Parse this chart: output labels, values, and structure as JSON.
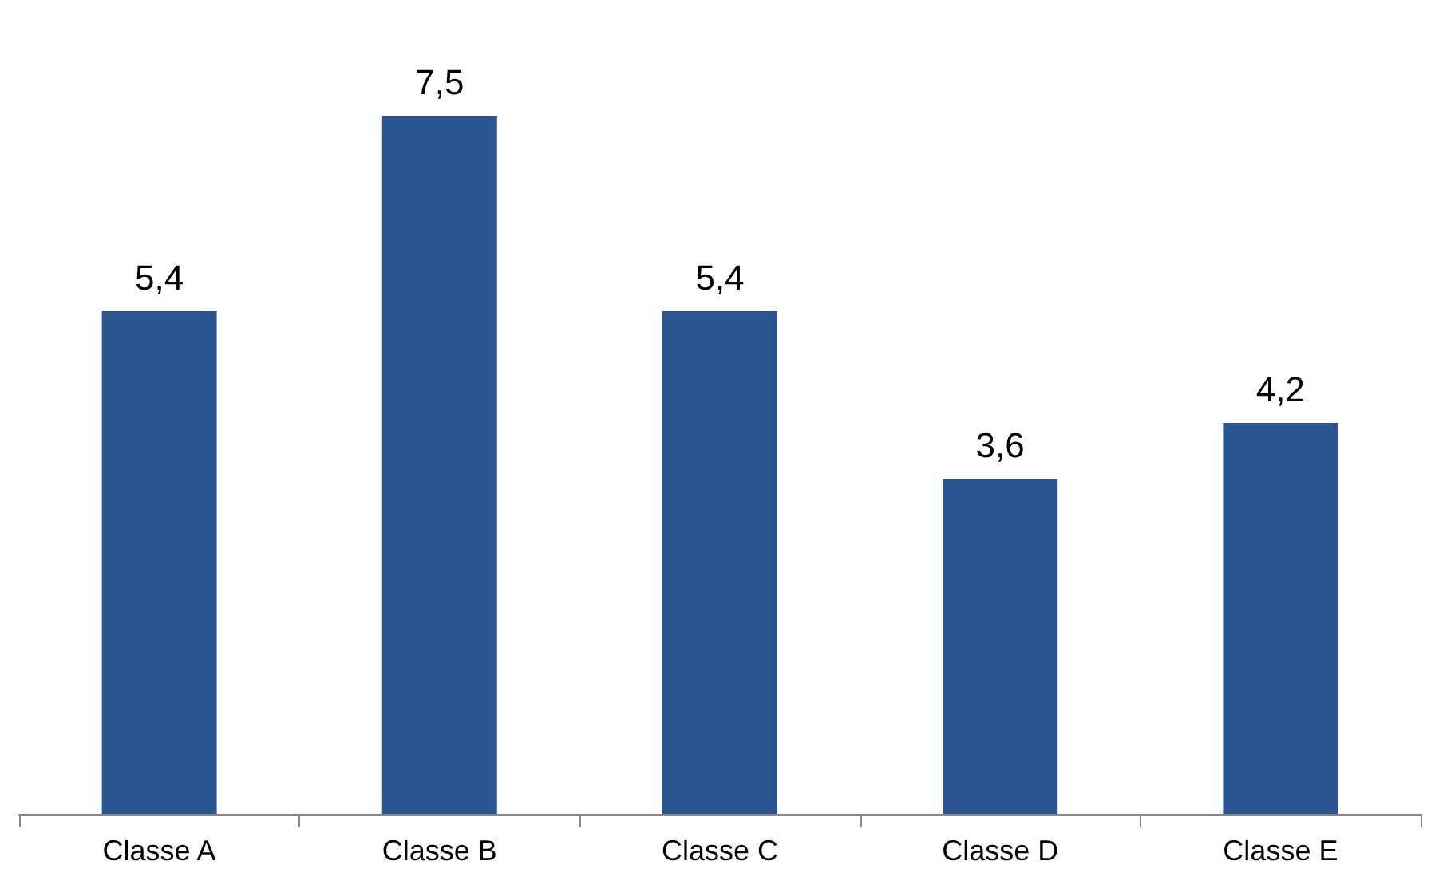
{
  "chart_data": {
    "type": "bar",
    "categories": [
      "Classe A",
      "Classe B",
      "Classe C",
      "Classe D",
      "Classe E"
    ],
    "values": [
      5.4,
      7.5,
      5.4,
      3.6,
      4.2
    ],
    "value_labels": [
      "5,4",
      "7,5",
      "5,4",
      "3,6",
      "4,2"
    ],
    "color": "#2b5591",
    "grid": false
  }
}
